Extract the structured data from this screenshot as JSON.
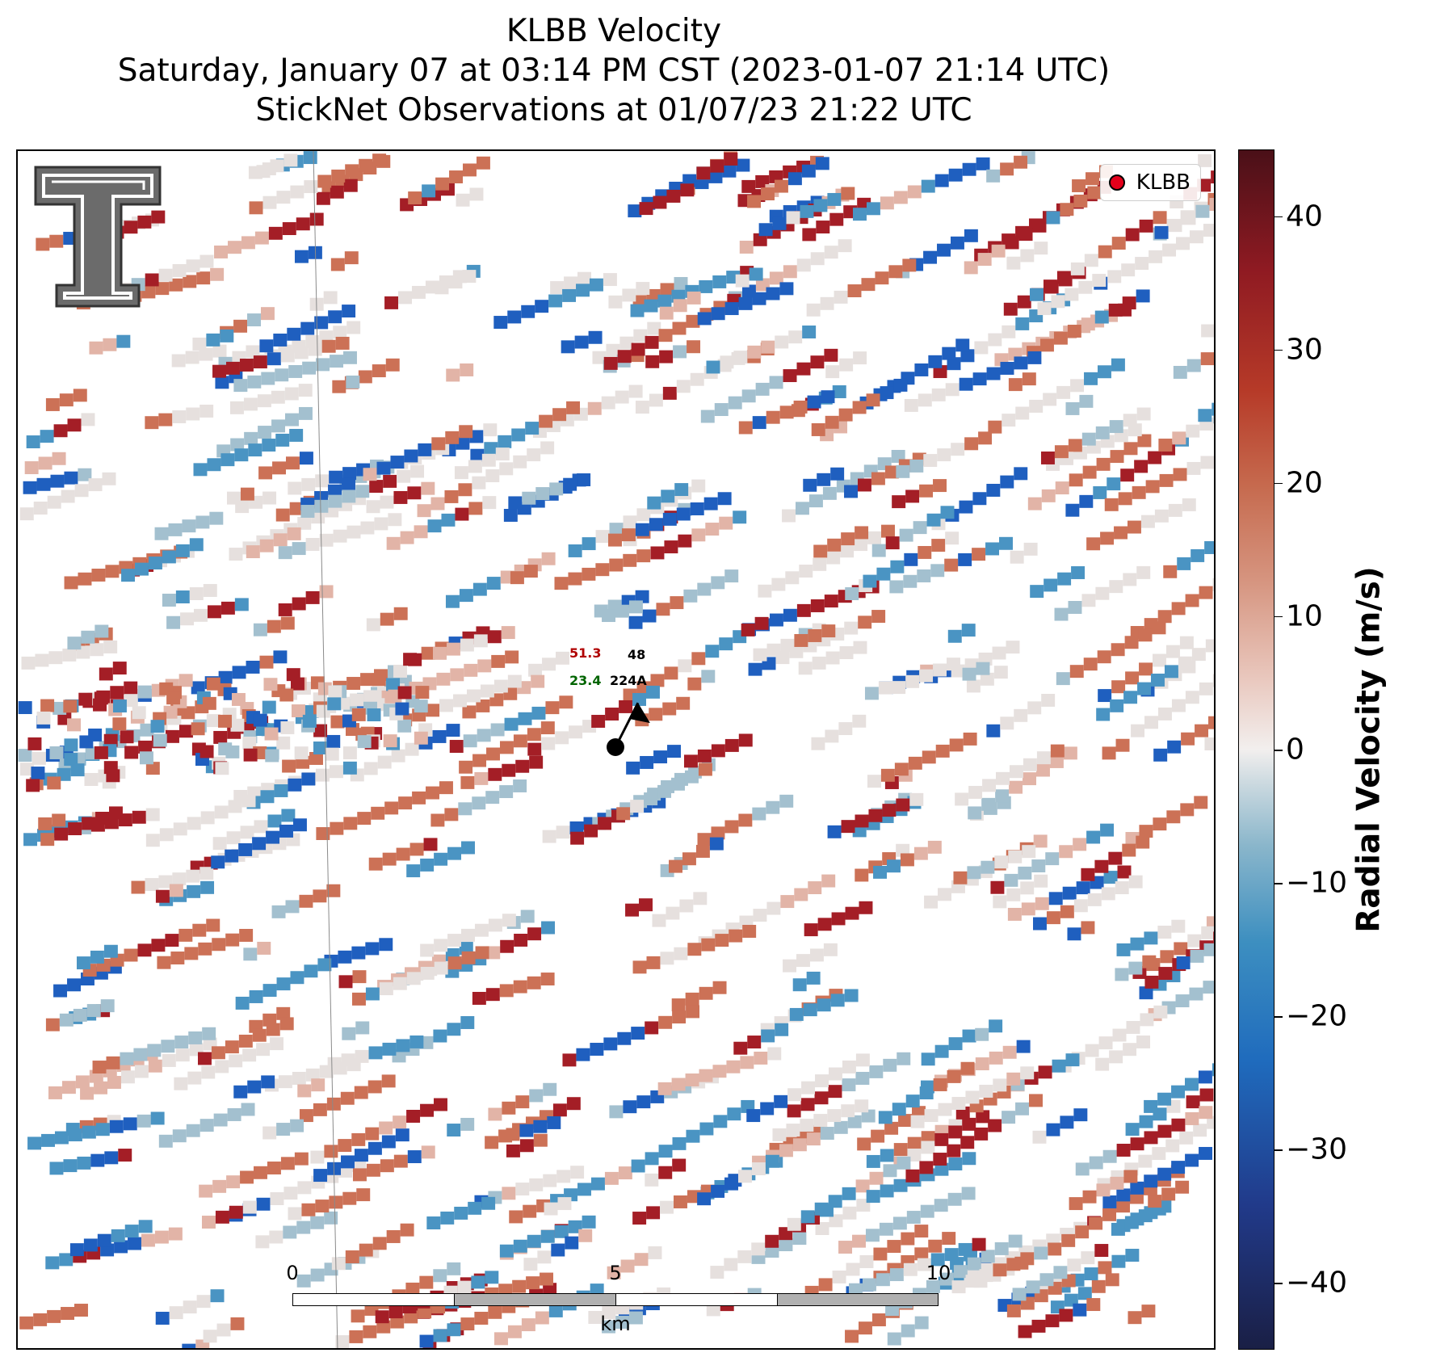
{
  "title": {
    "line1": "KLBB Velocity",
    "line2": "Saturday, January 07 at 03:14 PM CST (2023-01-07 21:14 UTC)",
    "line3": "StickNet Observations at 01/07/23 21:22 UTC"
  },
  "legend": {
    "label": "KLBB"
  },
  "station": {
    "id": "224A",
    "temperature": "51.3",
    "dewpoint": "23.4",
    "pressure": "48"
  },
  "scalebar": {
    "ticks": [
      "0",
      "5",
      "10"
    ],
    "unit": "km"
  },
  "colorbar": {
    "label": "Radial Velocity (m/s)",
    "min": -45,
    "max": 45,
    "ticks": [
      {
        "value": 40,
        "label": "40"
      },
      {
        "value": 30,
        "label": "30"
      },
      {
        "value": 20,
        "label": "20"
      },
      {
        "value": 10,
        "label": "10"
      },
      {
        "value": 0,
        "label": "0"
      },
      {
        "value": -10,
        "label": "−10"
      },
      {
        "value": -20,
        "label": "−20"
      },
      {
        "value": -30,
        "label": "−30"
      },
      {
        "value": -40,
        "label": "−40"
      }
    ]
  },
  "colors": {
    "strong_inbound": "#1f5fbf",
    "inbound": "#4a94c3",
    "weak_inbound": "#a3c0cf",
    "near_zero": "#e6e0de",
    "weak_outbound": "#e2b4a7",
    "outbound": "#cc7156",
    "strong_outbound": "#a41e26",
    "legend_marker": "#e4001b",
    "temperature": "#b00000",
    "dewpoint": "#006400"
  }
}
